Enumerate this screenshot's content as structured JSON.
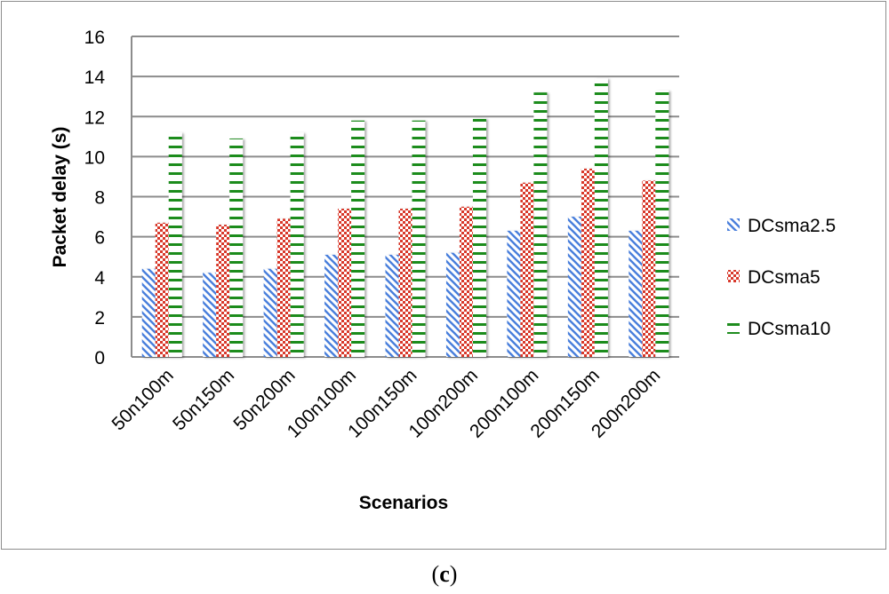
{
  "chart_data": {
    "type": "bar",
    "title": "",
    "xlabel": "Scenarios",
    "ylabel": "Packet delay (s)",
    "ylim": [
      0,
      16
    ],
    "yticks": [
      0,
      2,
      4,
      6,
      8,
      10,
      12,
      14,
      16
    ],
    "grid": true,
    "legend_position": "right",
    "categories": [
      "50n100m",
      "50n150m",
      "50n200m",
      "100n100m",
      "100n150m",
      "100n200m",
      "200n100m",
      "200n150m",
      "200n200m"
    ],
    "series": [
      {
        "name": "DCsma2.5",
        "color": "#4a7fdc",
        "values": [
          4.4,
          4.2,
          4.4,
          5.1,
          5.1,
          5.2,
          6.3,
          7.0,
          6.3
        ]
      },
      {
        "name": "DCsma5",
        "color": "#d8392c",
        "values": [
          6.7,
          6.6,
          6.9,
          7.4,
          7.4,
          7.5,
          8.7,
          9.4,
          8.8
        ]
      },
      {
        "name": "DCsma10",
        "color": "#1e8c1e",
        "values": [
          11.2,
          10.9,
          11.2,
          11.8,
          11.8,
          11.9,
          13.2,
          13.9,
          13.3
        ]
      }
    ]
  },
  "caption": {
    "open": "(",
    "letter": "c",
    "close": ")"
  }
}
